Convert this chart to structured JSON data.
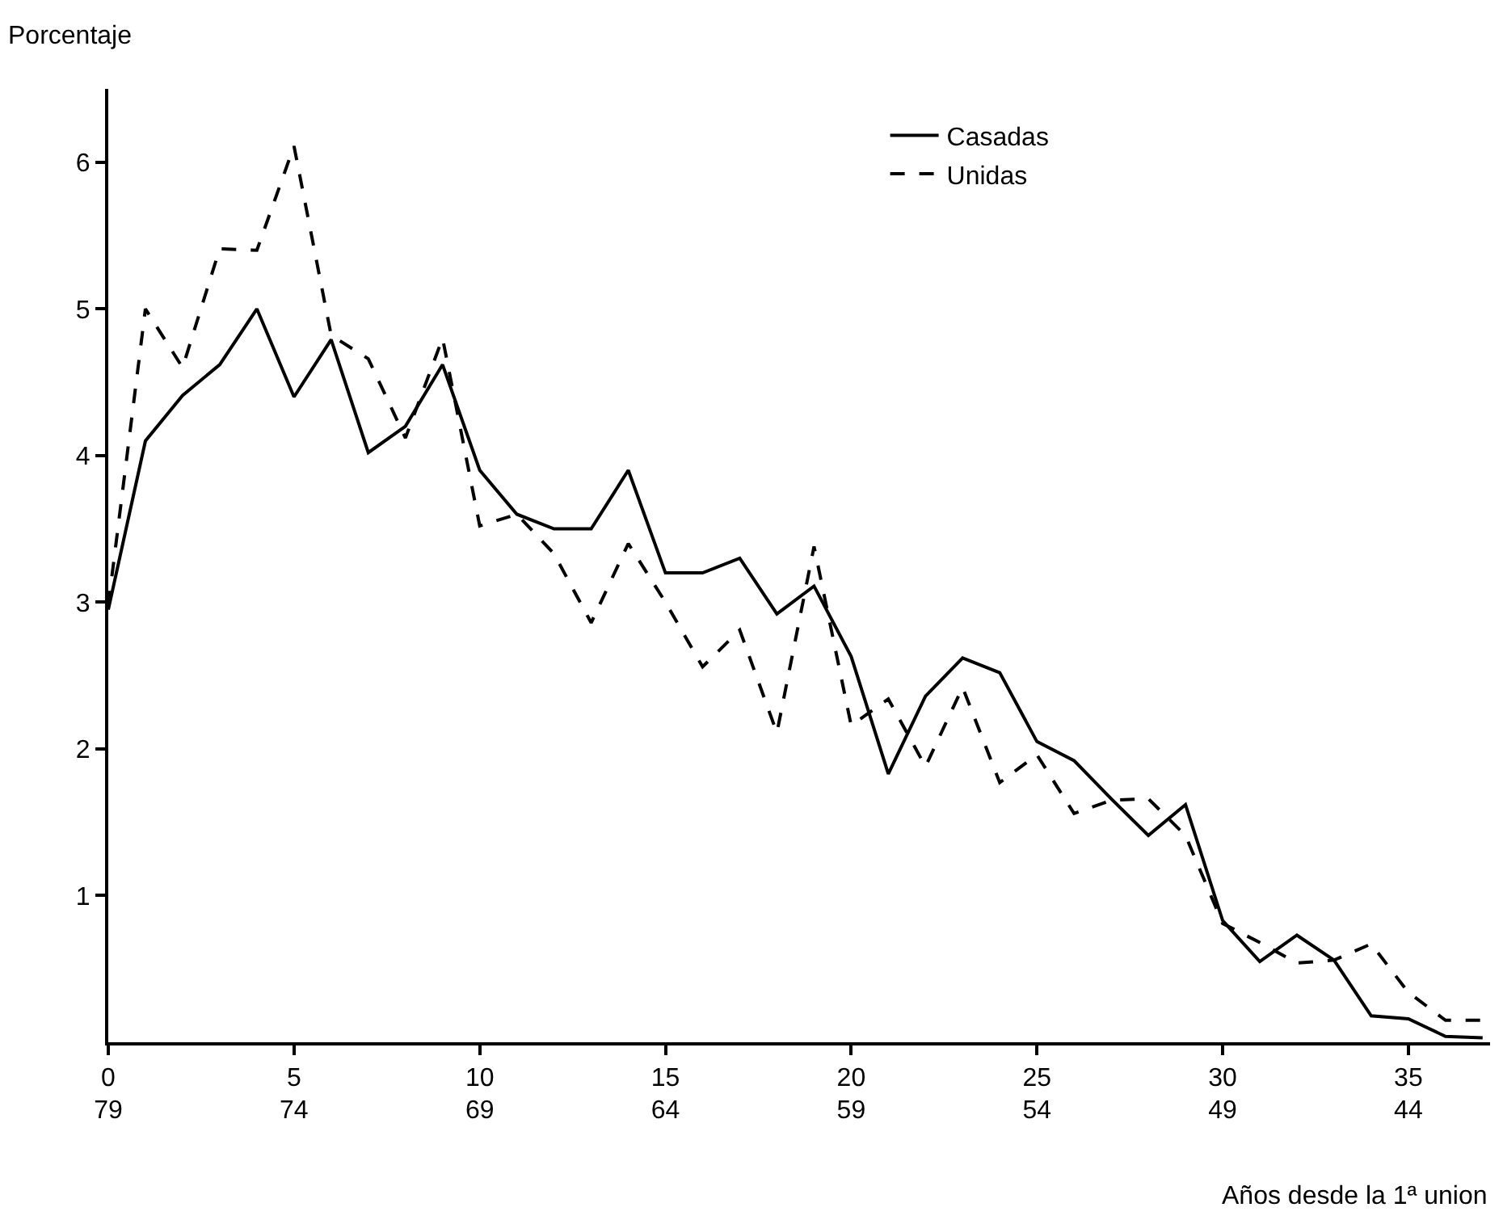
{
  "chart_data": {
    "type": "line",
    "ylabel": "Porcentaje",
    "xlabel": "Años desde la 1ª union",
    "x": [
      0,
      1,
      2,
      3,
      4,
      5,
      6,
      7,
      8,
      9,
      10,
      11,
      12,
      13,
      14,
      15,
      16,
      17,
      18,
      19,
      20,
      21,
      22,
      23,
      24,
      25,
      26,
      27,
      28,
      29,
      30,
      31,
      32,
      33,
      34,
      35,
      36,
      37
    ],
    "series": [
      {
        "name": "Casadas",
        "color": "#000000",
        "line_style": "solid",
        "values": [
          2.95,
          4.1,
          4.41,
          4.62,
          5.0,
          4.4,
          4.79,
          4.02,
          4.2,
          4.62,
          3.9,
          3.6,
          3.5,
          3.5,
          3.9,
          3.2,
          3.2,
          3.3,
          2.92,
          3.11,
          2.63,
          1.83,
          2.36,
          2.62,
          2.52,
          2.05,
          1.92,
          1.66,
          1.41,
          1.62,
          0.83,
          0.55,
          0.73,
          0.56,
          0.18,
          0.16,
          0.04,
          0.03
        ]
      },
      {
        "name": "Unidas",
        "color": "#000000",
        "line_style": "dashed",
        "values": [
          2.98,
          5.0,
          4.6,
          5.41,
          5.4,
          6.11,
          4.82,
          4.66,
          4.12,
          4.8,
          3.52,
          3.6,
          3.33,
          2.86,
          3.4,
          3.0,
          2.56,
          2.81,
          2.11,
          3.38,
          2.16,
          2.34,
          1.88,
          2.42,
          1.77,
          1.96,
          1.56,
          1.65,
          1.66,
          1.41,
          0.81,
          0.68,
          0.54,
          0.56,
          0.67,
          0.34,
          0.15,
          0.15
        ]
      }
    ],
    "xlim": [
      0,
      37.2
    ],
    "ylim": [
      0,
      6.5
    ],
    "xticks": [
      0,
      5,
      10,
      15,
      20,
      25,
      30,
      35
    ],
    "x2lim": [
      79,
      41.8
    ],
    "x2ticks": [
      79,
      74,
      69,
      64,
      59,
      54,
      49,
      44
    ],
    "yticks": [
      1,
      2,
      3,
      4,
      5,
      6
    ],
    "legend": "top right",
    "marker": "none"
  }
}
